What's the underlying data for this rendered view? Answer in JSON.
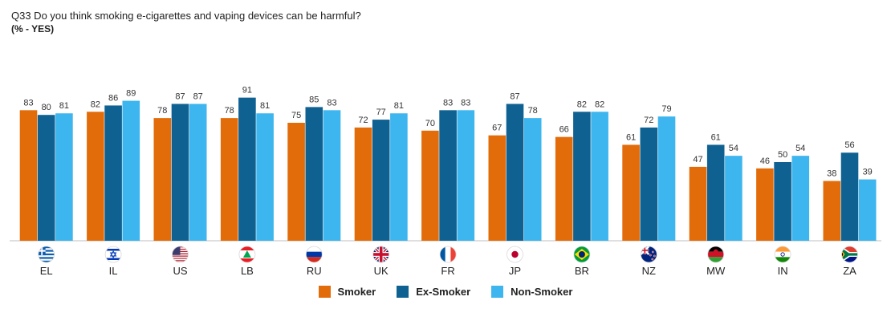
{
  "chart_data": {
    "type": "bar",
    "title": "Q33 Do you think smoking e-cigarettes and vaping devices can be harmful?",
    "subtitle": "(% - YES)",
    "categories": [
      "EL",
      "IL",
      "US",
      "LB",
      "RU",
      "UK",
      "FR",
      "JP",
      "BR",
      "NZ",
      "MW",
      "IN",
      "ZA"
    ],
    "series": [
      {
        "name": "Smoker",
        "color": "#E36C0A",
        "values": [
          83,
          82,
          78,
          78,
          75,
          72,
          70,
          67,
          66,
          61,
          47,
          46,
          38
        ]
      },
      {
        "name": "Ex-Smoker",
        "color": "#0F6192",
        "values": [
          80,
          86,
          87,
          91,
          85,
          77,
          83,
          87,
          82,
          72,
          61,
          50,
          56
        ]
      },
      {
        "name": "Non-Smoker",
        "color": "#3DB5EE",
        "values": [
          81,
          89,
          87,
          81,
          83,
          81,
          83,
          78,
          82,
          79,
          54,
          54,
          39
        ]
      }
    ],
    "flag_icons": [
      "flag-greece-icon",
      "flag-israel-icon",
      "flag-usa-icon",
      "flag-lebanon-icon",
      "flag-russia-icon",
      "flag-uk-icon",
      "flag-france-icon",
      "flag-japan-icon",
      "flag-brazil-icon",
      "flag-new-zealand-icon",
      "flag-malawi-icon",
      "flag-india-icon",
      "flag-south-africa-icon"
    ],
    "ylim": [
      0,
      100
    ],
    "grid": false,
    "legend_position": "bottom-center",
    "data_labels": true
  }
}
